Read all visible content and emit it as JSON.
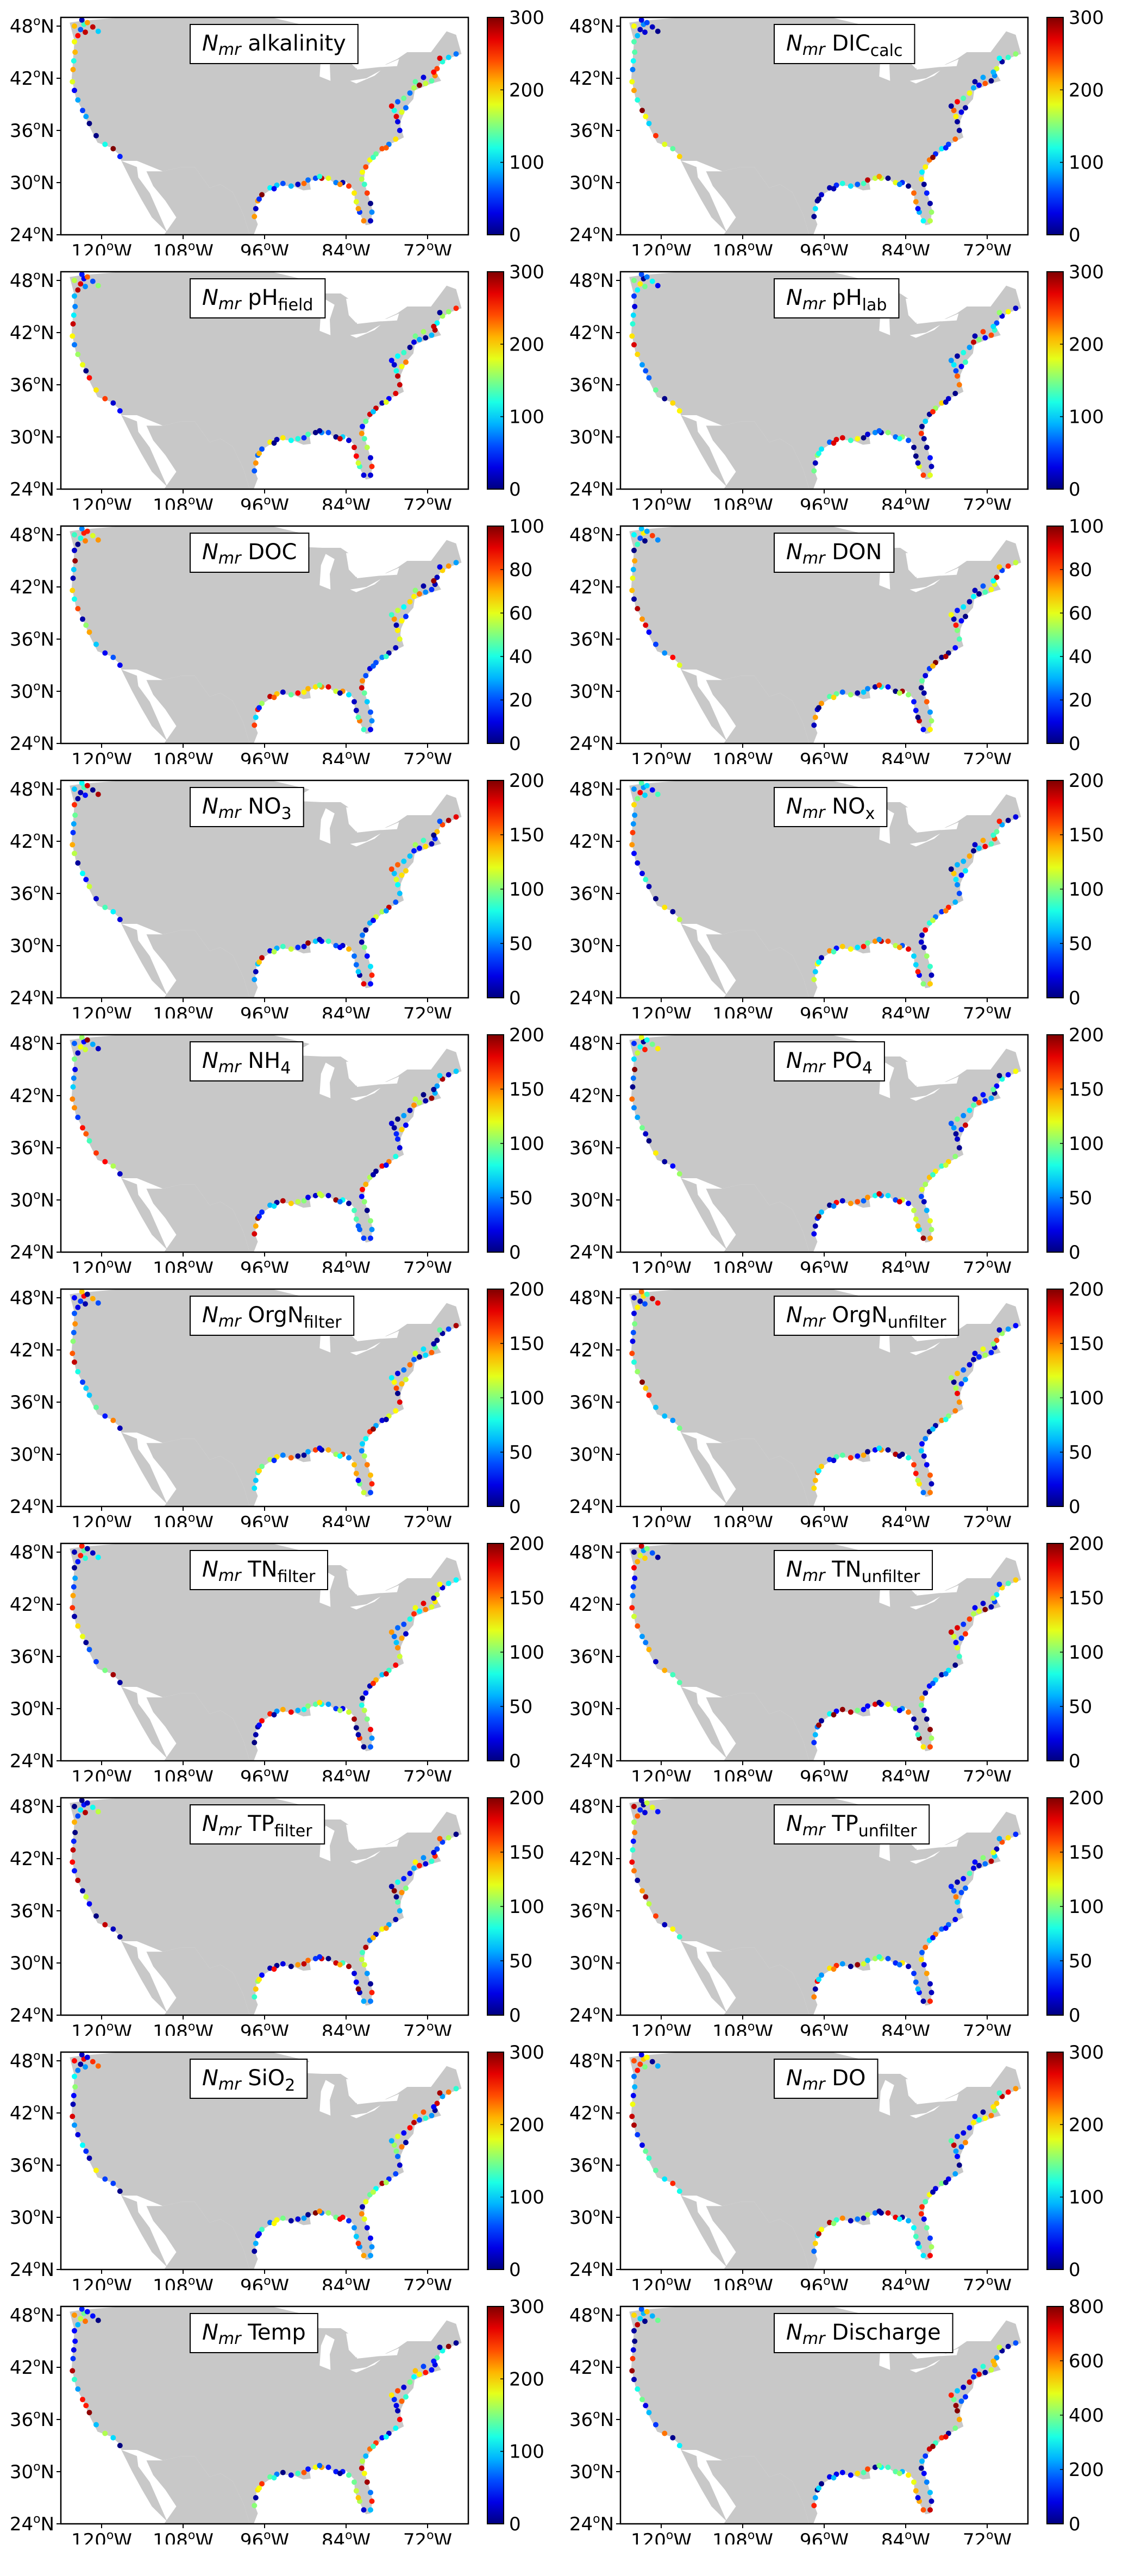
{
  "axes": {
    "lat_ticks": [
      {
        "v": 24,
        "label": "24",
        "deg": "o",
        "hem": "N"
      },
      {
        "v": 30,
        "label": "30",
        "deg": "o",
        "hem": "N"
      },
      {
        "v": 36,
        "label": "36",
        "deg": "o",
        "hem": "N"
      },
      {
        "v": 42,
        "label": "42",
        "deg": "o",
        "hem": "N"
      },
      {
        "v": 48,
        "label": "48",
        "deg": "o",
        "hem": "N"
      }
    ],
    "lon_ticks": [
      {
        "v": -120,
        "label": "120",
        "deg": "o",
        "hem": "W"
      },
      {
        "v": -108,
        "label": "108",
        "deg": "o",
        "hem": "W"
      },
      {
        "v": -96,
        "label": "96",
        "deg": "o",
        "hem": "W"
      },
      {
        "v": -84,
        "label": "84",
        "deg": "o",
        "hem": "W"
      },
      {
        "v": -72,
        "label": "72",
        "deg": "o",
        "hem": "W"
      }
    ],
    "lon_range": [
      -126,
      -66
    ],
    "lat_range": [
      24,
      49
    ]
  },
  "colors": {
    "land": "#c8c8c8",
    "colormap": "jet"
  },
  "panels": [
    {
      "prefix": "N",
      "sub_prefix": "mr",
      "name": "alkalinity",
      "sub": "",
      "ticks": [
        "0",
        "100",
        "200",
        "300"
      ],
      "vmax": 300,
      "seed": 1
    },
    {
      "prefix": "N",
      "sub_prefix": "mr",
      "name": "DIC",
      "sub": "calc",
      "ticks": [
        "0",
        "100",
        "200",
        "300"
      ],
      "vmax": 300,
      "seed": 2
    },
    {
      "prefix": "N",
      "sub_prefix": "mr",
      "name": "pH",
      "sub": "field",
      "ticks": [
        "0",
        "100",
        "200",
        "300"
      ],
      "vmax": 300,
      "seed": 3
    },
    {
      "prefix": "N",
      "sub_prefix": "mr",
      "name": "pH",
      "sub": "lab",
      "ticks": [
        "0",
        "100",
        "200",
        "300"
      ],
      "vmax": 300,
      "seed": 4
    },
    {
      "prefix": "N",
      "sub_prefix": "mr",
      "name": "DOC",
      "sub": "",
      "ticks": [
        "0",
        "20",
        "40",
        "60",
        "80",
        "100"
      ],
      "vmax": 100,
      "seed": 5
    },
    {
      "prefix": "N",
      "sub_prefix": "mr",
      "name": "DON",
      "sub": "",
      "ticks": [
        "0",
        "20",
        "40",
        "60",
        "80",
        "100"
      ],
      "vmax": 100,
      "seed": 6
    },
    {
      "prefix": "N",
      "sub_prefix": "mr",
      "name": "NO",
      "sub": "3",
      "ticks": [
        "0",
        "50",
        "100",
        "150",
        "200"
      ],
      "vmax": 200,
      "seed": 7
    },
    {
      "prefix": "N",
      "sub_prefix": "mr",
      "name": "NO",
      "sub": "x",
      "ticks": [
        "0",
        "50",
        "100",
        "150",
        "200"
      ],
      "vmax": 200,
      "seed": 8
    },
    {
      "prefix": "N",
      "sub_prefix": "mr",
      "name": "NH",
      "sub": "4",
      "ticks": [
        "0",
        "50",
        "100",
        "150",
        "200"
      ],
      "vmax": 200,
      "seed": 9
    },
    {
      "prefix": "N",
      "sub_prefix": "mr",
      "name": "PO",
      "sub": "4",
      "ticks": [
        "0",
        "50",
        "100",
        "150",
        "200"
      ],
      "vmax": 200,
      "seed": 10
    },
    {
      "prefix": "N",
      "sub_prefix": "mr",
      "name": "OrgN",
      "sub": "filter",
      "ticks": [
        "0",
        "50",
        "100",
        "150",
        "200"
      ],
      "vmax": 200,
      "seed": 11
    },
    {
      "prefix": "N",
      "sub_prefix": "mr",
      "name": "OrgN",
      "sub": "unfilter",
      "ticks": [
        "0",
        "50",
        "100",
        "150",
        "200"
      ],
      "vmax": 200,
      "seed": 12
    },
    {
      "prefix": "N",
      "sub_prefix": "mr",
      "name": "TN",
      "sub": "filter",
      "ticks": [
        "0",
        "50",
        "100",
        "150",
        "200"
      ],
      "vmax": 200,
      "seed": 13
    },
    {
      "prefix": "N",
      "sub_prefix": "mr",
      "name": "TN",
      "sub": "unfilter",
      "ticks": [
        "0",
        "50",
        "100",
        "150",
        "200"
      ],
      "vmax": 200,
      "seed": 14
    },
    {
      "prefix": "N",
      "sub_prefix": "mr",
      "name": "TP",
      "sub": "filter",
      "ticks": [
        "0",
        "50",
        "100",
        "150",
        "200"
      ],
      "vmax": 200,
      "seed": 15
    },
    {
      "prefix": "N",
      "sub_prefix": "mr",
      "name": "TP",
      "sub": "unfilter",
      "ticks": [
        "0",
        "50",
        "100",
        "150",
        "200"
      ],
      "vmax": 200,
      "seed": 16
    },
    {
      "prefix": "N",
      "sub_prefix": "mr",
      "name": "SiO",
      "sub": "2",
      "ticks": [
        "0",
        "100",
        "200",
        "300"
      ],
      "vmax": 300,
      "seed": 17
    },
    {
      "prefix": "N",
      "sub_prefix": "mr",
      "name": "DO",
      "sub": "",
      "ticks": [
        "0",
        "100",
        "200",
        "300"
      ],
      "vmax": 300,
      "seed": 18
    },
    {
      "prefix": "N",
      "sub_prefix": "mr",
      "name": "Temp",
      "sub": "",
      "ticks": [
        "0",
        "100",
        "200",
        "300"
      ],
      "vmax": 300,
      "seed": 19
    },
    {
      "prefix": "N",
      "sub_prefix": "mr",
      "name": "Discharge",
      "sub": "",
      "ticks": [
        "0",
        "200",
        "400",
        "600",
        "800"
      ],
      "vmax": 800,
      "seed": 20
    }
  ]
}
